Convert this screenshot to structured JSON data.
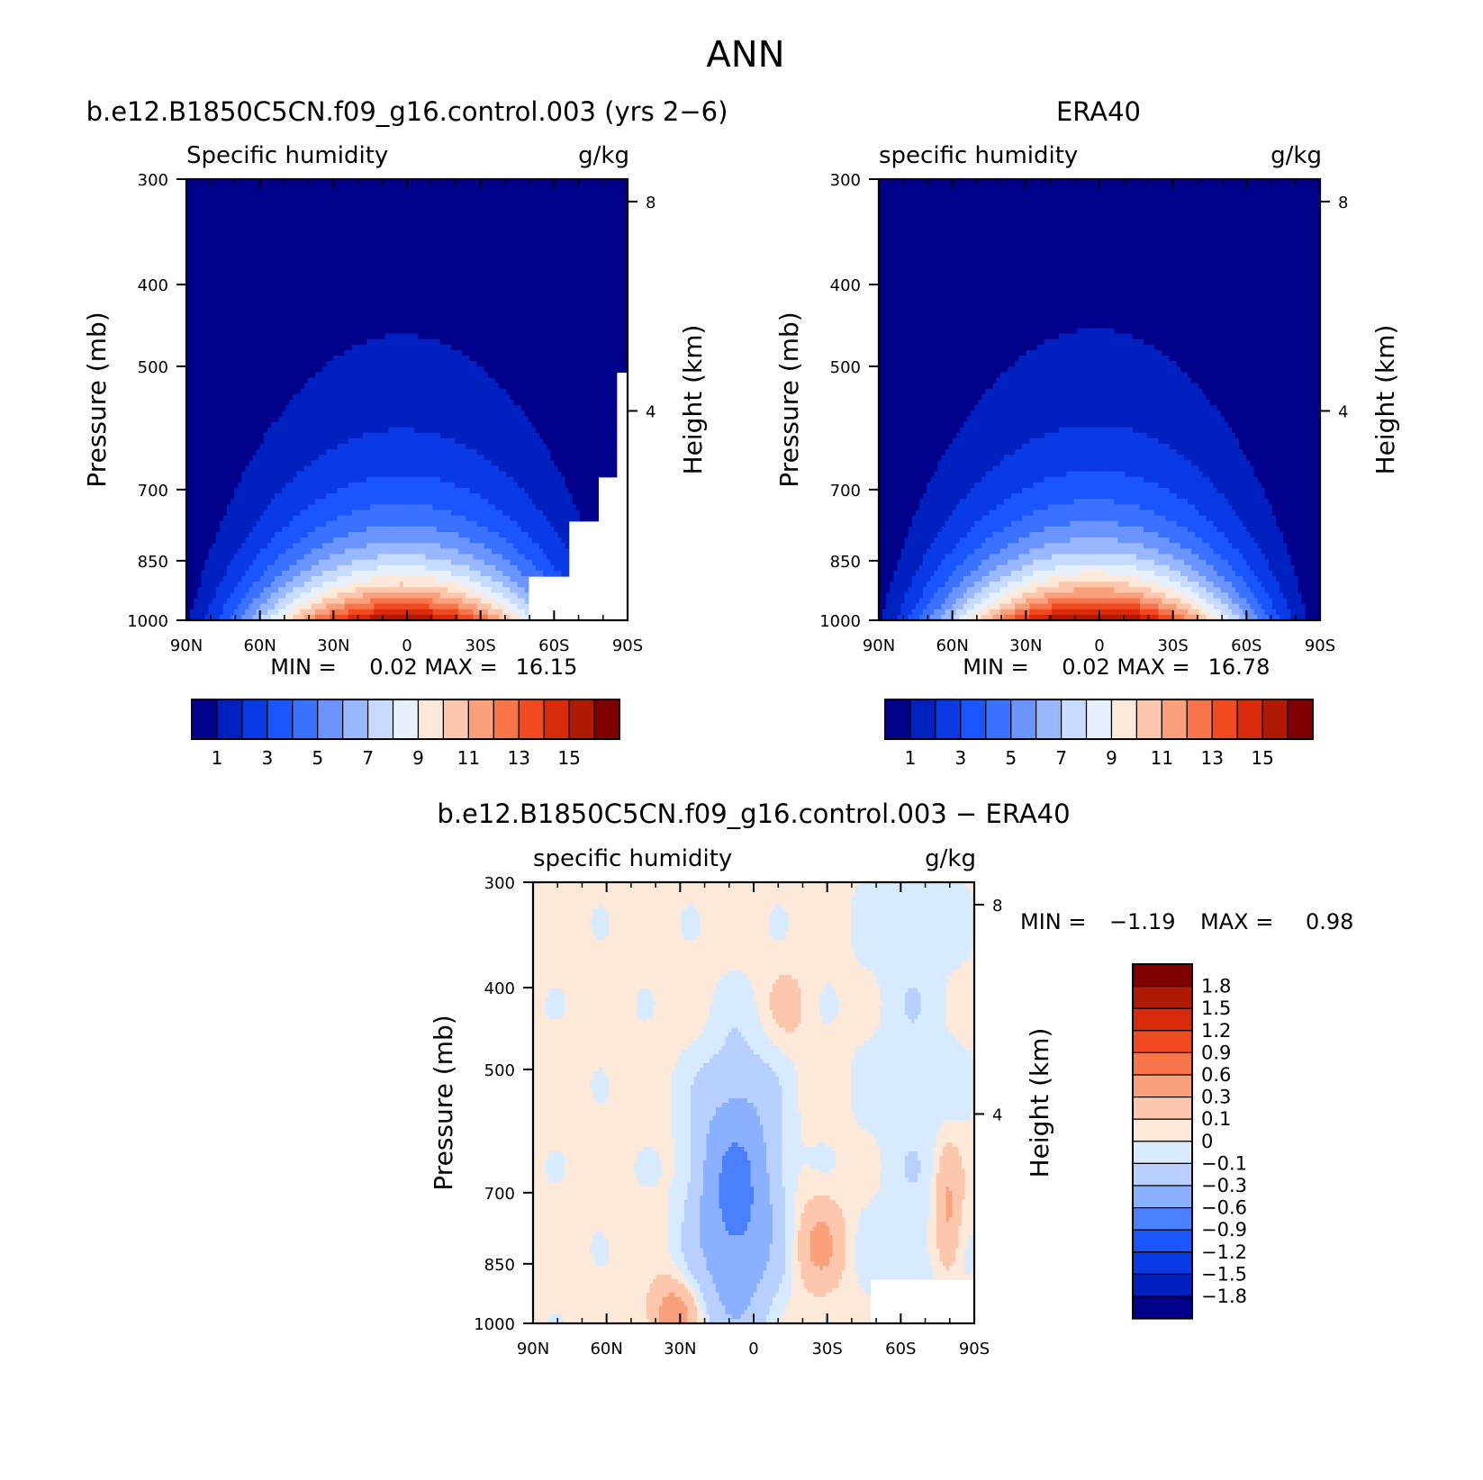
{
  "figure_title": "ANN",
  "chart_data": [
    {
      "type": "heatmap",
      "title": "b.e12.B1850C5CN.f09_g16.control.003 (yrs 2−6)",
      "subtitle_left": "Specific humidity",
      "units": "g/kg",
      "ylabel": "Pressure (mb)",
      "ylabel_right": "Height (km)",
      "x_ticks": [
        "90N",
        "60N",
        "30N",
        "0",
        "30S",
        "60S",
        "90S"
      ],
      "y_ticks": [
        "300",
        "400",
        "500",
        "700",
        "850",
        "1000"
      ],
      "y_ticks_right": [
        "8",
        "4"
      ],
      "ylim": [
        1000,
        300
      ],
      "stats": {
        "min_label": "MIN =",
        "min": "0.02",
        "max_label": "MAX =",
        "max": "16.15"
      },
      "levels": [
        1,
        2,
        3,
        4,
        5,
        6,
        7,
        8,
        9,
        10,
        11,
        12,
        13,
        14,
        15
      ],
      "colorbar_labels": [
        "1",
        "3",
        "5",
        "7",
        "9",
        "11",
        "13",
        "15"
      ],
      "peak_value": 16.15,
      "masked_region": "surface below ~900 mb poleward of 50S"
    },
    {
      "type": "heatmap",
      "title": "ERA40",
      "subtitle_left": "specific humidity",
      "units": "g/kg",
      "ylabel": "Pressure (mb)",
      "ylabel_right": "Height (km)",
      "x_ticks": [
        "90N",
        "60N",
        "30N",
        "0",
        "30S",
        "60S",
        "90S"
      ],
      "y_ticks": [
        "300",
        "400",
        "500",
        "700",
        "850",
        "1000"
      ],
      "y_ticks_right": [
        "8",
        "4"
      ],
      "ylim": [
        1000,
        300
      ],
      "stats": {
        "min_label": "MIN =",
        "min": "0.02",
        "max_label": "MAX =",
        "max": "16.78"
      },
      "levels": [
        1,
        2,
        3,
        4,
        5,
        6,
        7,
        8,
        9,
        10,
        11,
        12,
        13,
        14,
        15
      ],
      "colorbar_labels": [
        "1",
        "3",
        "5",
        "7",
        "9",
        "11",
        "13",
        "15"
      ],
      "peak_value": 16.78
    },
    {
      "type": "heatmap",
      "title": "b.e12.B1850C5CN.f09_g16.control.003 − ERA40",
      "subtitle_left": "specific humidity",
      "units": "g/kg",
      "ylabel": "Pressure (mb)",
      "ylabel_right": "Height (km)",
      "x_ticks": [
        "90N",
        "60N",
        "30N",
        "0",
        "30S",
        "60S",
        "90S"
      ],
      "y_ticks": [
        "300",
        "400",
        "500",
        "700",
        "850",
        "1000"
      ],
      "y_ticks_right": [
        "8",
        "4"
      ],
      "ylim": [
        1000,
        300
      ],
      "stats": {
        "min_label": "MIN =",
        "min": "−1.19",
        "max_label": "MAX =",
        "max": "0.98"
      },
      "levels": [
        -1.8,
        -1.5,
        -1.2,
        -0.9,
        -0.6,
        -0.3,
        -0.1,
        0,
        0.1,
        0.3,
        0.6,
        0.9,
        1.2,
        1.5,
        1.8
      ],
      "colorbar_labels": [
        "1.8",
        "1.5",
        "1.2",
        "0.9",
        "0.6",
        "0.3",
        "0.1",
        "0",
        "−0.1",
        "−0.3",
        "−0.6",
        "−0.9",
        "−1.2",
        "−1.5",
        "−1.8"
      ],
      "masked_region": "surface below ~900 mb poleward of 50S"
    }
  ],
  "colors": {
    "abs_palette": [
      "#00008b",
      "#0020c0",
      "#0a3ae6",
      "#1a55ff",
      "#3a72ff",
      "#6a94ff",
      "#9ab8ff",
      "#c6dbff",
      "#e6f0ff",
      "#fde9d9",
      "#fcc7ac",
      "#fba07c",
      "#f8754c",
      "#f24a20",
      "#d92b0c",
      "#b01a05",
      "#7f0000"
    ],
    "diff_palette": [
      "#00008b",
      "#0020c0",
      "#0a3ae6",
      "#1a55ff",
      "#4a80ff",
      "#8ab0ff",
      "#b8d0ff",
      "#d8eaff",
      "#fde9d9",
      "#fcc7ac",
      "#fba07c",
      "#f8754c",
      "#f24a20",
      "#d92b0c",
      "#b01a05",
      "#7f0000"
    ]
  }
}
